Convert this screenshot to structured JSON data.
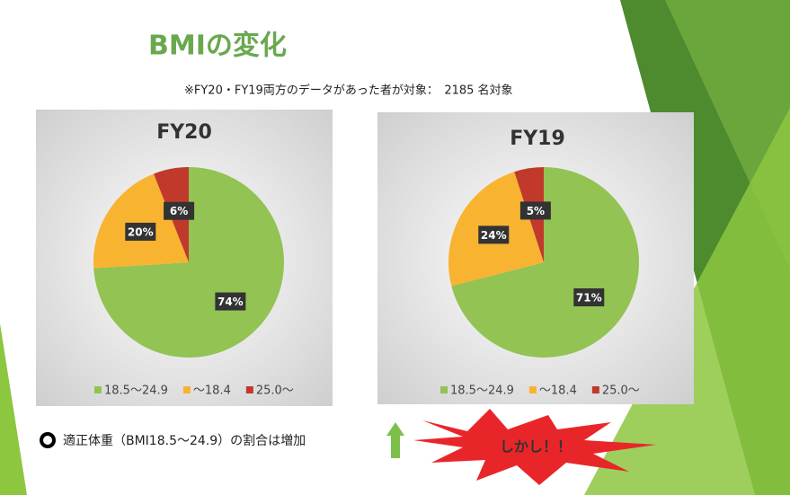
{
  "title": "BMIの変化",
  "note": "※FY20・FY19両方のデータがあった者が対象：　2185 名対象",
  "bullet": "適正体重（BMI18.5～24.9）の割合は増加",
  "callout": "しかし！！",
  "chart_data": [
    {
      "type": "pie",
      "title": "FY20",
      "categories": [
        "18.5～24.9",
        "～18.4",
        "25.0～"
      ],
      "values": [
        74,
        20,
        6
      ],
      "value_labels": [
        "74%",
        "20%",
        "6%"
      ],
      "colors": [
        "#92c353",
        "#f8b331",
        "#c0392b"
      ]
    },
    {
      "type": "pie",
      "title": "FY19",
      "categories": [
        "18.5～24.9",
        "～18.4",
        "25.0～"
      ],
      "values": [
        71,
        24,
        5
      ],
      "value_labels": [
        "71%",
        "24%",
        "5%"
      ],
      "colors": [
        "#92c353",
        "#f8b331",
        "#c0392b"
      ]
    }
  ]
}
